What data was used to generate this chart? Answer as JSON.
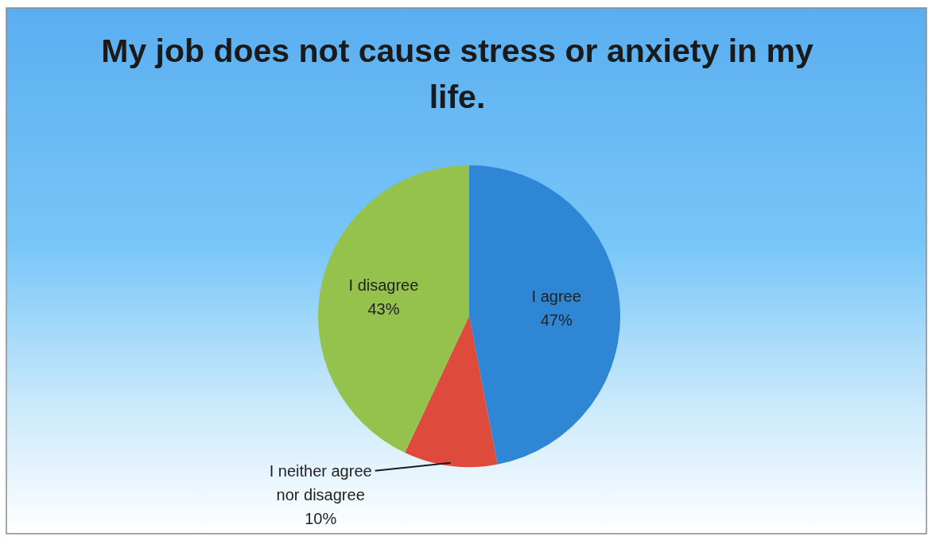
{
  "chart_data": {
    "type": "pie",
    "title": "My job does not cause stress or anxiety in my life.",
    "categories": [
      "I agree",
      "I neither agree nor disagree",
      "I disagree"
    ],
    "values": [
      47,
      10,
      43
    ],
    "value_labels": [
      "47%",
      "10%",
      "43%"
    ],
    "colors": [
      "#2f86d4",
      "#de4a3c",
      "#95c24d"
    ]
  }
}
